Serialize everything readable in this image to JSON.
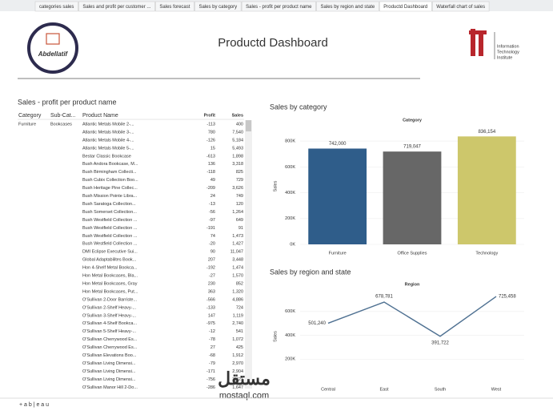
{
  "tabs": [
    "categories sales",
    "Sales and profit per customer ...",
    "Sales forecast",
    "Sales by category",
    "Sales - profit per product name",
    "Sales by region and state",
    "Productd Dashboard",
    "Waterfall chart of sales"
  ],
  "active_tab": 6,
  "header": {
    "title": "Productd Dashboard",
    "logo_left": "Abdellatif",
    "logo_right": [
      "Information",
      "Technology",
      "Institute"
    ]
  },
  "table": {
    "title": "Sales - profit per product name",
    "columns": [
      "Category",
      "Sub-Cat...",
      "Product Name",
      "Profit",
      "Sales"
    ],
    "category": "Furniture",
    "sub_category": "Bookcases",
    "rows": [
      [
        "Atlantic Metals Mobile 2-...",
        "-113",
        "400"
      ],
      [
        "Atlantic Metals Mobile 3-...",
        "780",
        "7,540"
      ],
      [
        "Atlantic Metals Mobile 4-...",
        "-126",
        "5,184"
      ],
      [
        "Atlantic Metals Mobile 5-...",
        "15",
        "5,493"
      ],
      [
        "Bestar Classic Bookcase",
        "-613",
        "1,898"
      ],
      [
        "Bush Andora Bookcase, M...",
        "136",
        "3,318"
      ],
      [
        "Bush Birmingham Collecti...",
        "-118",
        "825"
      ],
      [
        "Bush Cubix Collection Boo...",
        "49",
        "729"
      ],
      [
        "Bush Heritage Pine Collec...",
        "-209",
        "3,626"
      ],
      [
        "Bush Mission Pointe Libra...",
        "24",
        "749"
      ],
      [
        "Bush Saratoga Collection...",
        "-13",
        "120"
      ],
      [
        "Bush Somerset Collection...",
        "-56",
        "1,264"
      ],
      [
        "Bush Westfield Collection ...",
        "-97",
        "649"
      ],
      [
        "Bush Westfield Collection ...",
        "-191",
        "91"
      ],
      [
        "Bush Westfield Collection ...",
        "74",
        "1,473"
      ],
      [
        "Bush Westfield Collection ...",
        "-20",
        "1,427"
      ],
      [
        "DMI Eclipse Executive Sui...",
        "90",
        "11,047"
      ],
      [
        "Global Adaptabilites Book...",
        "207",
        "3,448"
      ],
      [
        "Hon 4-Shelf Metal Bookca...",
        "-192",
        "1,474"
      ],
      [
        "Hon Metal Bookcases, Bla...",
        "-27",
        "1,570"
      ],
      [
        "Hon Metal Bookcases, Gray",
        "230",
        "852"
      ],
      [
        "Hon Metal Bookcases, Put...",
        "363",
        "1,320"
      ],
      [
        "O'Sullivan 2-Door Barriste...",
        "-566",
        "4,886"
      ],
      [
        "O'Sullivan 2-Shelf Heavy-...",
        "-133",
        "724"
      ],
      [
        "O'Sullivan 3-Shelf Heavy-...",
        "147",
        "1,119"
      ],
      [
        "O'Sullivan 4-Shelf Bookca...",
        "-975",
        "2,740"
      ],
      [
        "O'Sullivan 5-Shelf Heavy-...",
        "-12",
        "541"
      ],
      [
        "O'Sullivan Cherrywood Es...",
        "-78",
        "1,072"
      ],
      [
        "O'Sullivan Cherrywood Es...",
        "27",
        "425"
      ],
      [
        "O'Sullivan Elevations Boo...",
        "-68",
        "1,912"
      ],
      [
        "O'Sullivan Living Dimensi...",
        "-79",
        "2,970"
      ],
      [
        "O'Sullivan Living Dimensi...",
        "-171",
        "2,904"
      ],
      [
        "O'Sullivan Living Dimensi...",
        "-756",
        "3,421"
      ],
      [
        "O'Sullivan Manor Hill 2-Do...",
        "-286",
        "1,647"
      ]
    ]
  },
  "chart_data": [
    {
      "type": "bar",
      "title": "Sales by category",
      "x_label": "Category",
      "y_label": "Sales",
      "categories": [
        "Furniture",
        "Office Supplies",
        "Technology"
      ],
      "values": [
        742000,
        719047,
        836154
      ],
      "value_labels": [
        "742,000",
        "719,047",
        "836,154"
      ],
      "colors": [
        "#2f5d8a",
        "#676767",
        "#cdc76b"
      ],
      "ylim": [
        0,
        900000
      ],
      "yticks": [
        {
          "value": 0,
          "label": "0K"
        },
        {
          "value": 200000,
          "label": "200K"
        },
        {
          "value": 400000,
          "label": "400K"
        },
        {
          "value": 600000,
          "label": "600K"
        },
        {
          "value": 800000,
          "label": "800K"
        }
      ],
      "grid": true
    },
    {
      "type": "line",
      "title": "Sales by region and state",
      "x_label": "Region",
      "y_label": "Sales",
      "categories": [
        "Central",
        "East",
        "South",
        "West"
      ],
      "values": [
        501240,
        678781,
        391722,
        725458
      ],
      "value_labels": [
        "501,240",
        "678,781",
        "391,722",
        "725,458"
      ],
      "color": "#4f7192",
      "ylim": [
        0,
        780000
      ],
      "yticks": [
        {
          "value": 200000,
          "label": "200K"
        },
        {
          "value": 400000,
          "label": "400K"
        },
        {
          "value": 600000,
          "label": "600K"
        }
      ],
      "grid": true
    }
  ],
  "footer": {
    "brand": "+ a b | e a u"
  },
  "watermark": [
    "مستقل",
    "mostaql.com"
  ]
}
